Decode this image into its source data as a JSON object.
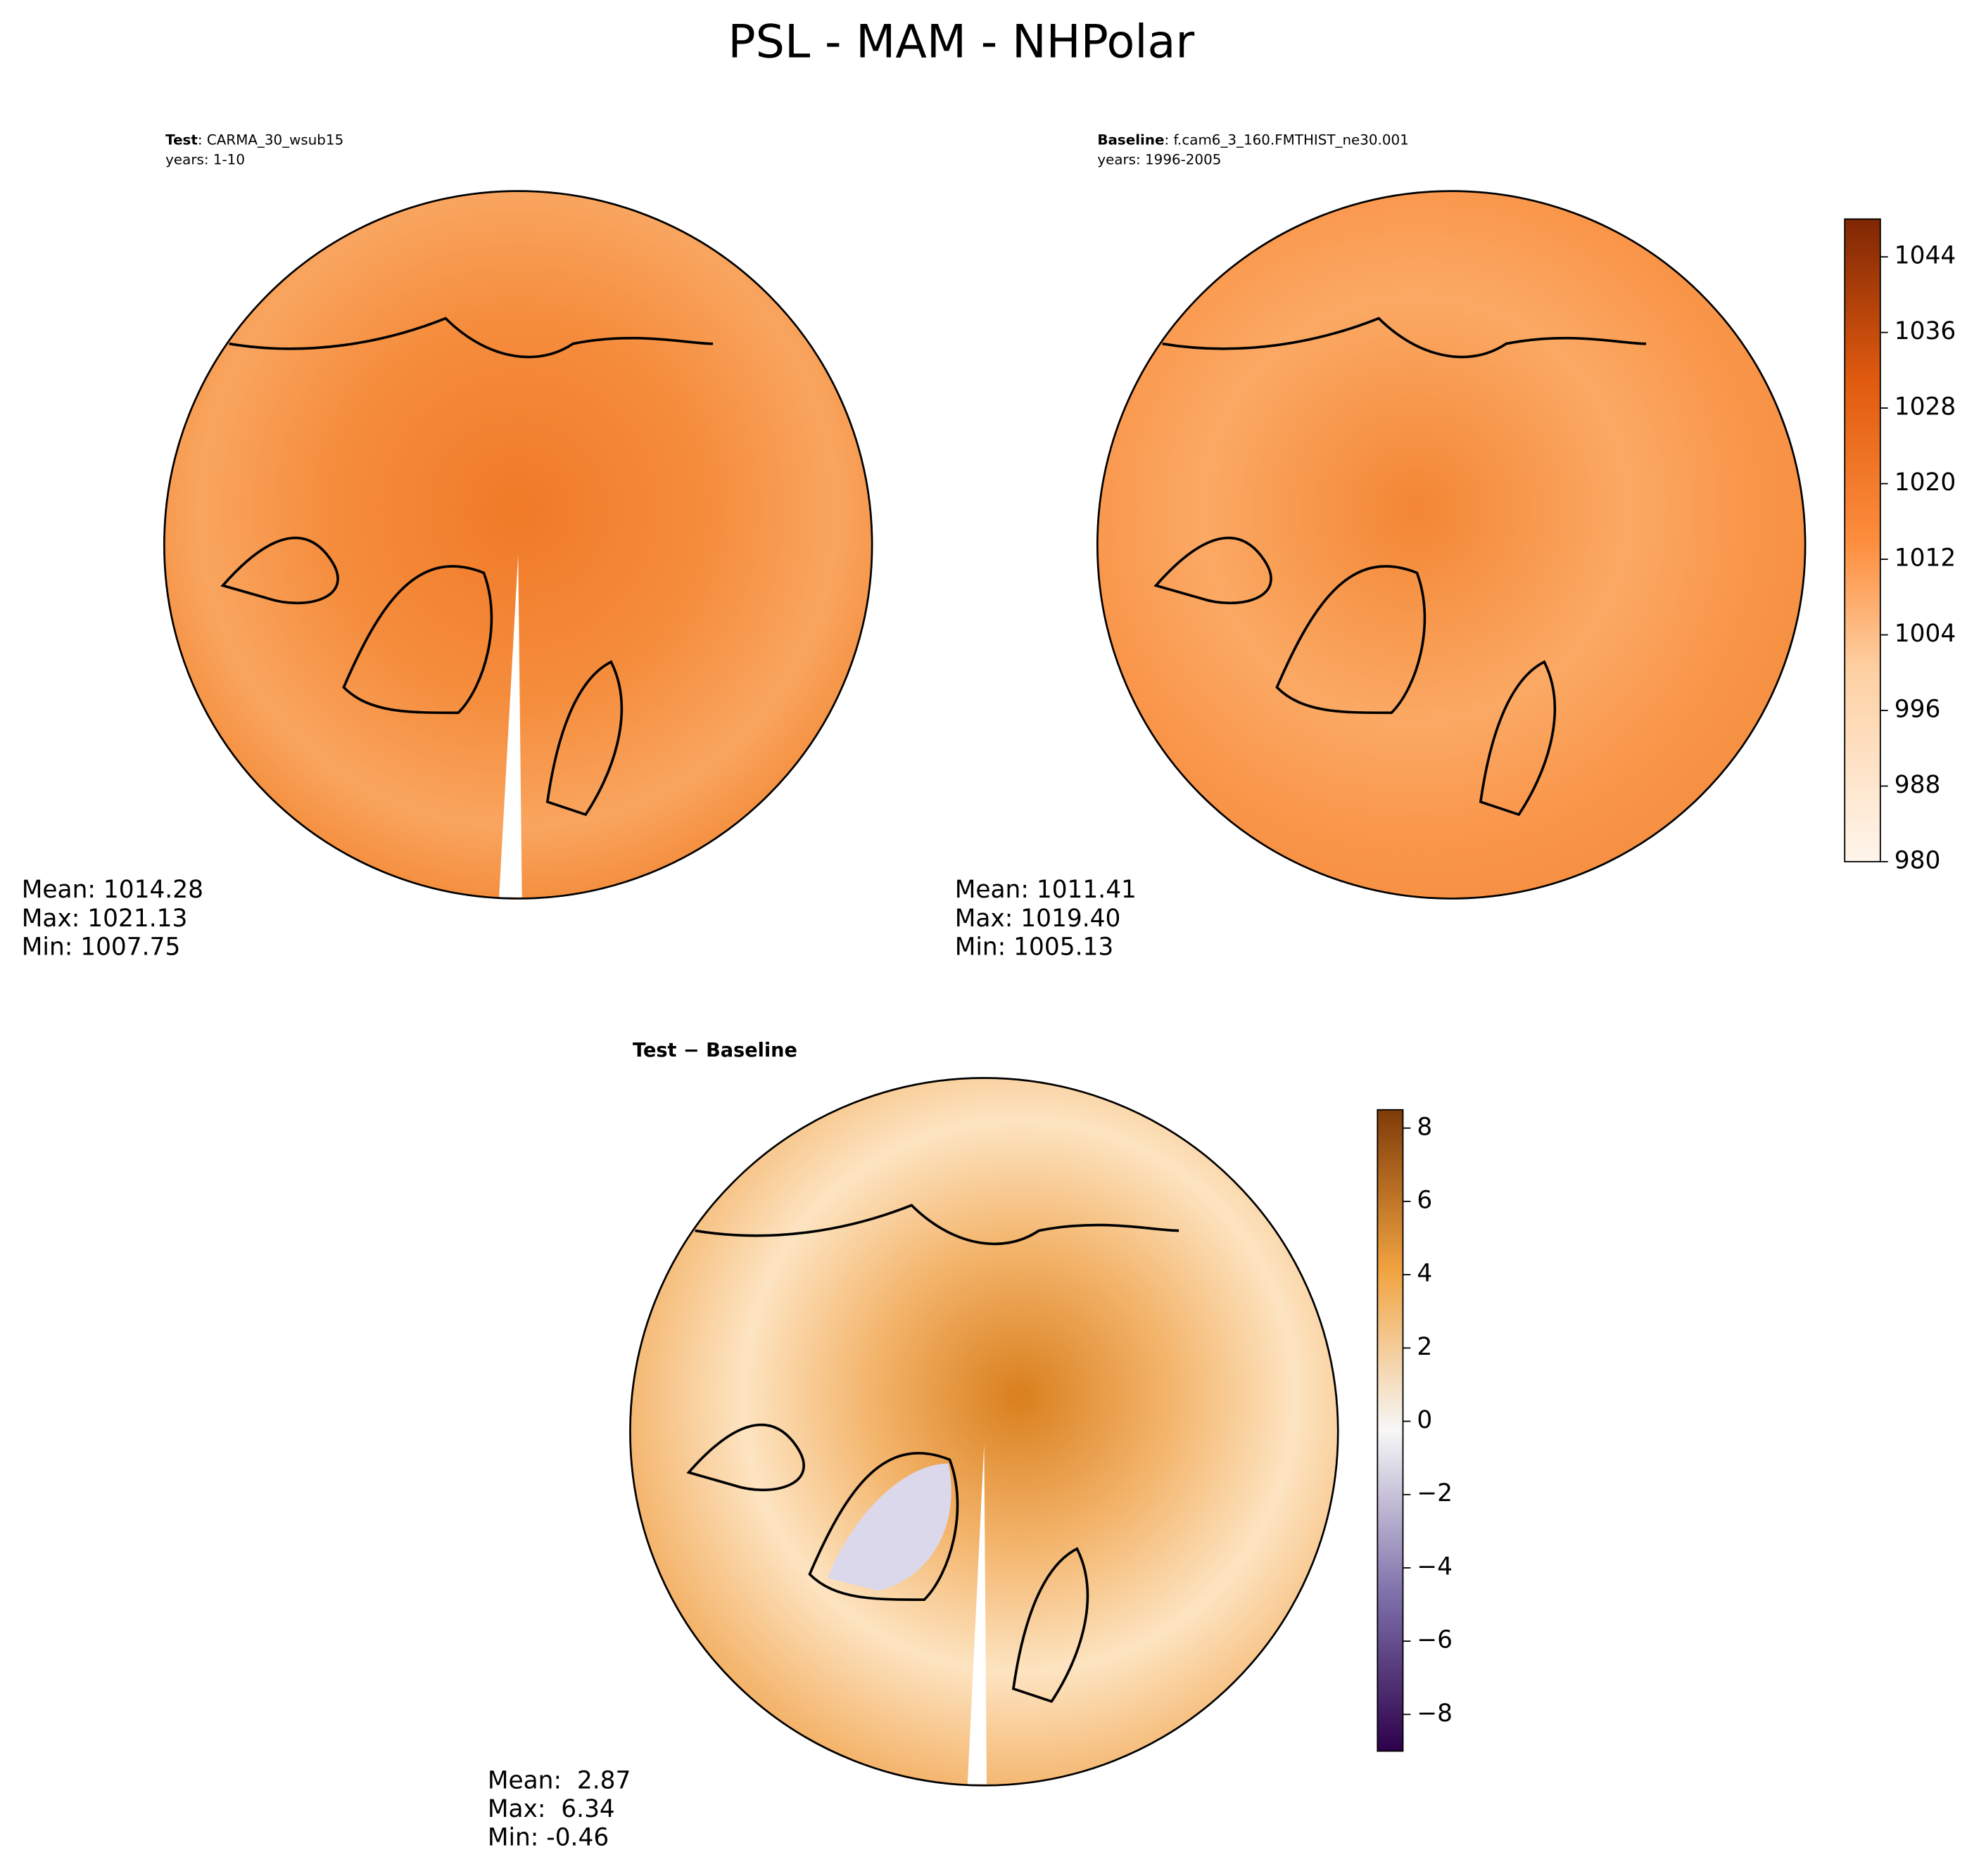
{
  "title": "PSL - MAM - NHPolar",
  "panels": [
    {
      "label": "Test",
      "case": ": CARMA_30_wsub15",
      "years": "years: 1-10",
      "stats": [
        "Mean: 1014.28",
        "Max: 1021.13",
        "Min: 1007.75"
      ]
    },
    {
      "label": "Baseline",
      "case": ": f.cam6_3_160.FMTHIST_ne30.001",
      "years": "years: 1996-2005",
      "stats": [
        "Mean: 1011.41",
        "Max: 1019.40",
        "Min: 1005.13"
      ]
    },
    {
      "label": "Test − Baseline",
      "stats": [
        "Mean:  2.87",
        "Max:  6.34",
        "Min: -0.46"
      ]
    }
  ],
  "colorbars": [
    {
      "lim": [
        980,
        1048
      ],
      "ticks": [
        980,
        988,
        996,
        1004,
        1012,
        1020,
        1028,
        1036,
        1044
      ]
    },
    {
      "lim": [
        -9,
        8.5
      ],
      "ticks": [
        {
          "value": -8,
          "label": "−8"
        },
        {
          "value": -6,
          "label": "−6"
        },
        {
          "value": -4,
          "label": "−4"
        },
        {
          "value": -2,
          "label": "−2"
        },
        0,
        2,
        4,
        6,
        8
      ]
    }
  ]
}
